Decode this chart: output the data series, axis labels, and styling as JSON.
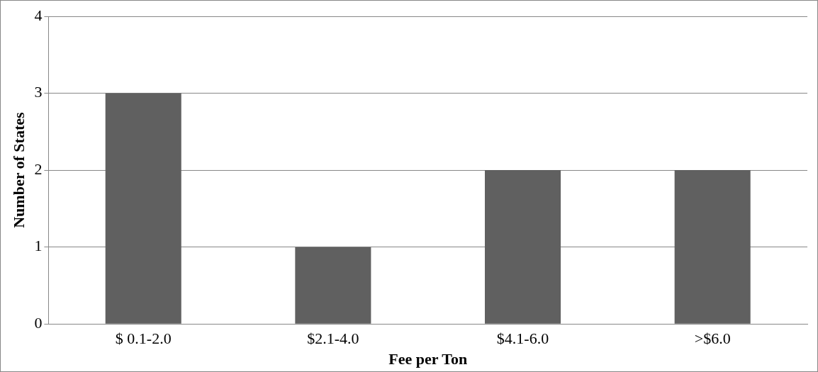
{
  "chart_data": {
    "type": "bar",
    "xlabel": "Fee per Ton",
    "ylabel": "Number of States",
    "categories": [
      "$ 0.1-2.0",
      "$2.1-4.0",
      "$4.1-6.0",
      ">$6.0"
    ],
    "values": [
      3,
      1,
      2,
      2
    ],
    "color": "#606060",
    "ylim": [
      0,
      4
    ],
    "yticks": [
      0,
      1,
      2,
      3,
      4
    ],
    "grid": "y",
    "legend": false
  }
}
